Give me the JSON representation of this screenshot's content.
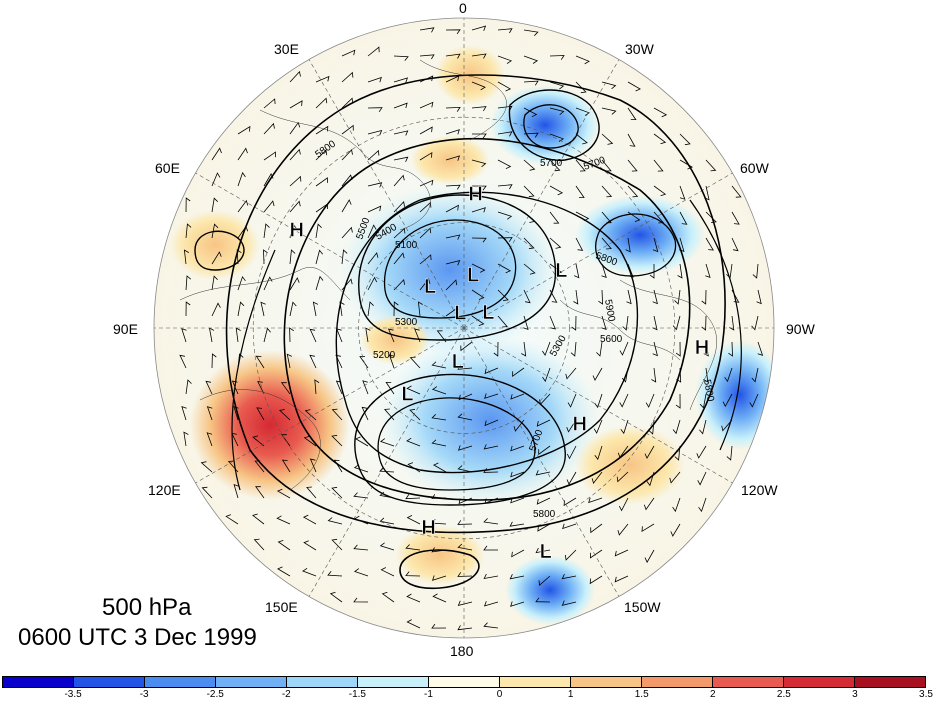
{
  "title": {
    "level": "500 hPa",
    "datetime": "0600 UTC 3 Dec 1999"
  },
  "longitude_labels": [
    "0",
    "30W",
    "60W",
    "90W",
    "120W",
    "150W",
    "180",
    "150E",
    "120E",
    "90E",
    "60E",
    "30E"
  ],
  "contour_labels": [
    "5800",
    "5700",
    "5500",
    "5400",
    "5300",
    "5200",
    "5100",
    "5700",
    "5800",
    "5600",
    "5800",
    "5300",
    "5700",
    "5800",
    "5900"
  ],
  "pressure_centers": [
    {
      "type": "H",
      "lon": -5,
      "lat": 52
    },
    {
      "type": "H",
      "lon": 60,
      "lat": 35
    },
    {
      "type": "H",
      "lon": -95,
      "lat": 22
    },
    {
      "type": "H",
      "lon": -130,
      "lat": 47
    },
    {
      "type": "H",
      "lon": 170,
      "lat": 32
    },
    {
      "type": "L",
      "lon": -160,
      "lat": 22
    },
    {
      "type": "L",
      "lon": 40,
      "lat": 75
    },
    {
      "type": "L",
      "lon": -10,
      "lat": 75
    },
    {
      "type": "L",
      "lon": 15,
      "lat": 86
    },
    {
      "type": "L",
      "lon": -60,
      "lat": 82
    },
    {
      "type": "L",
      "lon": -60,
      "lat": 58
    },
    {
      "type": "L",
      "lon": 170,
      "lat": 80
    },
    {
      "type": "L",
      "lon": 140,
      "lat": 65
    }
  ],
  "colorbar": {
    "colors": [
      "#0a00cc",
      "#2255e6",
      "#4a8cf0",
      "#70b0f5",
      "#9dd6f8",
      "#c8f0fb",
      "#fefbe6",
      "#fce7ac",
      "#f7c585",
      "#f39a6a",
      "#e85a4f",
      "#d42a33",
      "#a80f20"
    ],
    "ticks": [
      "-3.5",
      "-3",
      "-2.5",
      "-2",
      "-1.5",
      "-1",
      "0",
      "1",
      "1.5",
      "2",
      "2.5",
      "3",
      "3.5"
    ]
  }
}
